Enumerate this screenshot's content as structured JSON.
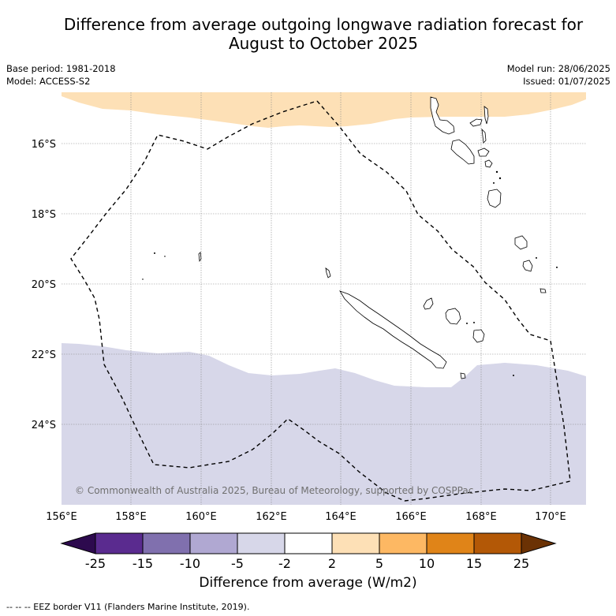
{
  "title_line1": "Difference from average outgoing longwave radiation forecast for",
  "title_line2": "August to October 2025",
  "meta_left": {
    "base_period": "Base period: 1981-2018",
    "model": "Model: ACCESS-S2"
  },
  "meta_right": {
    "model_run": "Model run: 28/06/2025",
    "issued": "Issued: 01/07/2025"
  },
  "map": {
    "lat_labels": [
      "16°S",
      "18°S",
      "20°S",
      "22°S",
      "24°S"
    ],
    "lon_labels": [
      "156°E",
      "158°E",
      "160°E",
      "162°E",
      "164°E",
      "166°E",
      "168°E",
      "170°E"
    ],
    "copyright": "© Commonwealth of Australia 2025, Bureau of Meteorology, supported by COSPPac",
    "colors": {
      "positive_band": "#fde0b6",
      "negative_band": "#d7d7e9",
      "grid": "#888888"
    }
  },
  "colorbar": {
    "tick_labels": [
      "-25",
      "-15",
      "-10",
      "-5",
      "-2",
      "2",
      "5",
      "10",
      "15",
      "25"
    ],
    "colors": [
      "#2d0a4e",
      "#5a2b8f",
      "#8070ae",
      "#b0a8d2",
      "#d7d7e9",
      "#ffffff",
      "#fde0b6",
      "#fdb863",
      "#e08418",
      "#b35806",
      "#6b3204"
    ],
    "label": "Difference from average (W/m2)"
  },
  "footer": "--  --  -- EEZ border V11 (Flanders Marine Institute, 2019)."
}
